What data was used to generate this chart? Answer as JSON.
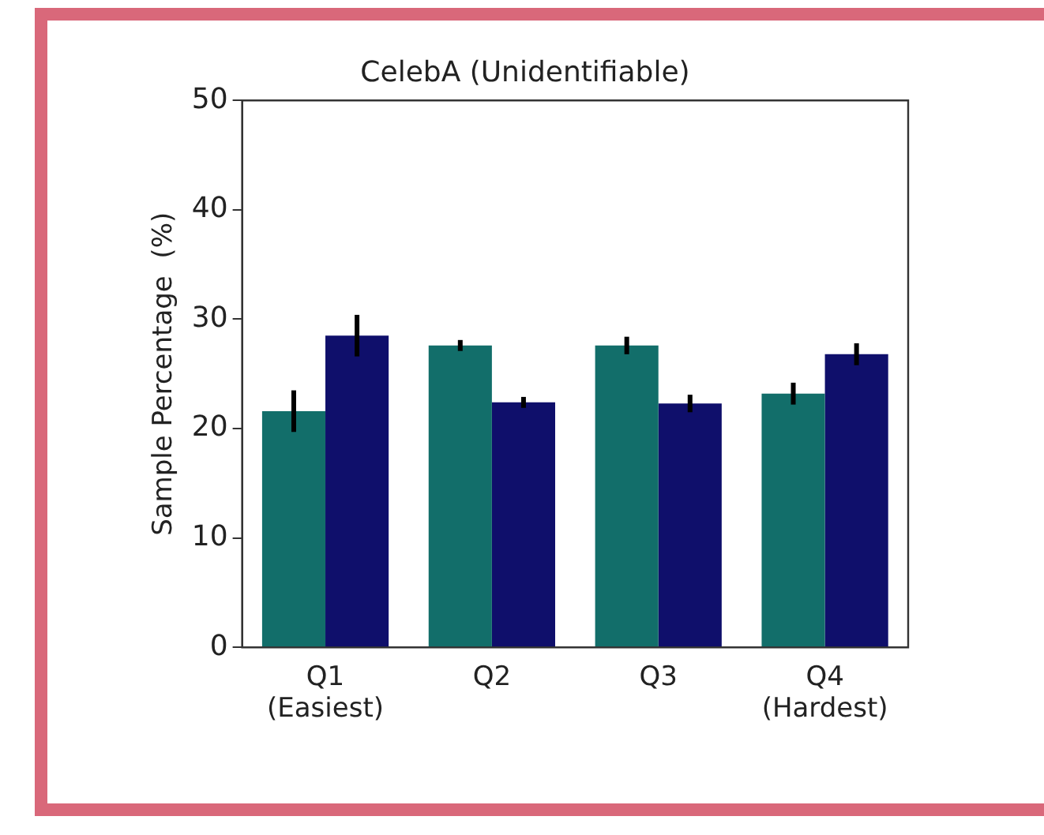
{
  "chart_data": {
    "type": "bar",
    "title": "CelebA (Unidentifiable)",
    "ylabel": "Sample Percentage  (%)",
    "categories": [
      "Q1\n(Easiest)",
      "Q2",
      "Q3",
      "Q4\n(Hardest)"
    ],
    "series": [
      {
        "color": "#126e6a",
        "values": [
          21.6,
          27.6,
          27.6,
          23.2
        ],
        "errors": [
          1.9,
          0.5,
          0.8,
          1.0
        ]
      },
      {
        "color": "#0f0f6b",
        "values": [
          28.5,
          22.4,
          22.3,
          26.8
        ],
        "errors": [
          1.9,
          0.5,
          0.8,
          1.0
        ]
      }
    ],
    "ylim": [
      0,
      50
    ],
    "yticks": [
      0,
      10,
      20,
      30,
      40,
      50
    ],
    "grid": false,
    "legend": false
  }
}
